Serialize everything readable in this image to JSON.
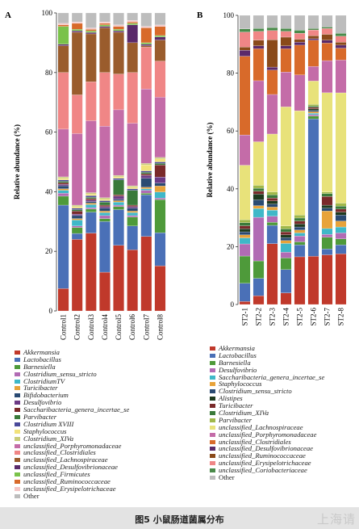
{
  "caption": "图5 小鼠肠道菌属分布",
  "watermark": "上海请",
  "chart_data": [
    {
      "type": "bar",
      "stacked": true,
      "panel_label": "A",
      "ylabel": "Relative abundance (%)",
      "ylim": [
        0,
        100
      ],
      "yticks": [
        0,
        20,
        40,
        60,
        80,
        100
      ],
      "categories": [
        "Control1",
        "Control2",
        "Control3",
        "Control4",
        "Control5",
        "Control6",
        "Control7",
        "Control8"
      ],
      "series": [
        {
          "name": "Akkermansia",
          "color": "#c0392b",
          "values": [
            7.5,
            24,
            26,
            13,
            22,
            20.5,
            25,
            15
          ]
        },
        {
          "name": "Lactobacillus",
          "color": "#4a70b7",
          "values": [
            28,
            2,
            7,
            17,
            12,
            8,
            14,
            11
          ]
        },
        {
          "name": "Barnesiella",
          "color": "#4e9a3a",
          "values": [
            3,
            2,
            1,
            1,
            1,
            3,
            0.5,
            11
          ]
        },
        {
          "name": "Clostridium_sensu_stricto",
          "color": "#b16bb4",
          "values": [
            1,
            0.5,
            0.5,
            1,
            0.5,
            0.5,
            1,
            0.5
          ]
        },
        {
          "name": "ClostridiumTV",
          "color": "#3fb8c8",
          "values": [
            1,
            2,
            1,
            1,
            1,
            1,
            0.5,
            2
          ]
        },
        {
          "name": "Turicibacter",
          "color": "#e8a33a",
          "values": [
            0.5,
            0.5,
            0.5,
            0.5,
            0.5,
            0.5,
            0.5,
            2
          ]
        },
        {
          "name": "Bifidobacterium",
          "color": "#2a4a72",
          "values": [
            1,
            1,
            0.5,
            1,
            0.5,
            1,
            3,
            1
          ]
        },
        {
          "name": "Desulfovibrio",
          "color": "#6b3a85",
          "values": [
            0.5,
            0.5,
            0.5,
            0.5,
            1,
            0.5,
            1,
            2
          ]
        },
        {
          "name": "Saccharibacteria_genera_incertae_se",
          "color": "#7a2a2a",
          "values": [
            0.5,
            1,
            0.5,
            0.5,
            0.5,
            0.5,
            0.5,
            4
          ]
        },
        {
          "name": "Parvibacter",
          "color": "#3a7a3a",
          "values": [
            0.5,
            0.5,
            0.5,
            1,
            5,
            5,
            0.5,
            0.5
          ]
        },
        {
          "name": "Clostridium XVIII",
          "color": "#4a4a9a",
          "values": [
            0.5,
            0.5,
            0.5,
            0.5,
            0.5,
            0.5,
            0.5,
            0.5
          ]
        },
        {
          "name": "Staphylococcus",
          "color": "#f2e27a",
          "values": [
            0.5,
            0.5,
            0.5,
            0.5,
            0.5,
            0.5,
            2,
            1
          ]
        },
        {
          "name": "Clostridium_XIVa",
          "color": "#c9cc7a",
          "values": [
            0.5,
            0.5,
            0.5,
            0.5,
            0.5,
            0.5,
            0.5,
            0.5
          ]
        },
        {
          "name": "unclassified_Porphyromonadaceae",
          "color": "#c46ca8",
          "values": [
            16,
            24,
            24,
            24,
            22,
            21,
            25,
            20
          ]
        },
        {
          "name": "unclassified_Clostridiales",
          "color": "#f08686",
          "values": [
            19,
            13,
            13,
            18,
            12,
            17,
            14,
            12
          ]
        },
        {
          "name": "unclassified_Lachnospiraceae",
          "color": "#9a5c2c",
          "values": [
            9,
            21,
            16,
            15,
            14,
            10,
            0.5,
            7
          ]
        },
        {
          "name": "unclassified_Desulfovibrionaceae",
          "color": "#5a2a6a",
          "values": [
            0.5,
            0.5,
            0.5,
            0.5,
            0.5,
            6,
            0.5,
            1
          ]
        },
        {
          "name": "unclassified_Firmicutes",
          "color": "#7ac24a",
          "values": [
            6,
            0.5,
            0.5,
            0.5,
            0.5,
            0.5,
            0.5,
            0.5
          ]
        },
        {
          "name": "unclassified_Ruminococcaceae",
          "color": "#d86a2a",
          "values": [
            0.5,
            2,
            0.5,
            0.5,
            1,
            0.5,
            5,
            3
          ]
        },
        {
          "name": "unclassified_Erysipelotrichaceae",
          "color": "#f4c6c6",
          "values": [
            0.5,
            0.5,
            0.5,
            0.5,
            0.5,
            0.5,
            0.5,
            0.5
          ]
        },
        {
          "name": "Other",
          "color": "#bdbdbd",
          "values": [
            3.5,
            3,
            5,
            3,
            4,
            2.5,
            4.5,
            4
          ]
        }
      ]
    },
    {
      "type": "bar",
      "stacked": true,
      "panel_label": "B",
      "ylabel": "Relative abundance (%)",
      "ylim": [
        0,
        100
      ],
      "yticks": [
        0,
        20,
        40,
        60,
        80,
        100
      ],
      "categories": [
        "ST2-1",
        "ST2-2",
        "ST2-3",
        "ST2-4",
        "ST2-5",
        "ST2-6",
        "ST2-7",
        "ST2-8"
      ],
      "series": [
        {
          "name": "Akkermansia",
          "color": "#c0392b",
          "values": [
            1,
            3,
            20,
            4,
            16,
            16.5,
            17,
            17
          ]
        },
        {
          "name": "Lactobacillus",
          "color": "#4a70b7",
          "values": [
            6,
            6,
            6,
            8,
            4,
            47,
            2,
            3
          ]
        },
        {
          "name": "Barnesiella",
          "color": "#4e9a3a",
          "values": [
            9,
            6,
            1,
            4,
            1,
            1,
            4,
            2
          ]
        },
        {
          "name": "Desulfovibrio",
          "color": "#b16bb4",
          "values": [
            4,
            15,
            2,
            2,
            2,
            0.5,
            1,
            2
          ]
        },
        {
          "name": "Saccharibacteria_genera_incertae_se",
          "color": "#3fb8c8",
          "values": [
            2,
            3,
            2,
            3,
            1,
            0.5,
            2,
            2
          ]
        },
        {
          "name": "Staphylococcus",
          "color": "#e8a33a",
          "values": [
            1,
            1,
            1,
            1,
            1,
            0.5,
            6,
            2
          ]
        },
        {
          "name": "Clostridium_sensu_stricto",
          "color": "#2a4a72",
          "values": [
            1,
            2,
            1,
            1,
            1,
            0.5,
            1,
            2
          ]
        },
        {
          "name": "Alistipes",
          "color": "#1e3a1e",
          "values": [
            1,
            2,
            1,
            1,
            1,
            0.5,
            1,
            1
          ]
        },
        {
          "name": "Turicibacter",
          "color": "#7a2a2a",
          "values": [
            1,
            1,
            1,
            1,
            1,
            0.5,
            3,
            1
          ]
        },
        {
          "name": "Clostridium_XIVa",
          "color": "#3a7a3a",
          "values": [
            1,
            1,
            1,
            1,
            1,
            0.5,
            1,
            1
          ]
        },
        {
          "name": "Parvibacter",
          "color": "#a0b84a",
          "values": [
            1,
            1,
            1,
            1,
            1,
            0.5,
            0.5,
            1
          ]
        },
        {
          "name": "unclassified_Lachnospiraceae",
          "color": "#e8e27a",
          "values": [
            18,
            15,
            19,
            41,
            35,
            8,
            34,
            37
          ]
        },
        {
          "name": "unclassified_Porphyromonadaceae",
          "color": "#c46ca8",
          "values": [
            10,
            21,
            13,
            12,
            12,
            5,
            11,
            11
          ]
        },
        {
          "name": "unclassified_Clostridiales",
          "color": "#d86a2a",
          "values": [
            26,
            11,
            8,
            8,
            10,
            9,
            6,
            4
          ]
        },
        {
          "name": "unclassified_Desulfovibrionaceae",
          "color": "#5a2a6a",
          "values": [
            2,
            1,
            1,
            1,
            1,
            0.5,
            1,
            1
          ]
        },
        {
          "name": "unclassified_Ruminococcaceae",
          "color": "#8a4a1a",
          "values": [
            1,
            2,
            9,
            3,
            1,
            1,
            2,
            1
          ]
        },
        {
          "name": "unclassified_Erysipelotrichaceae",
          "color": "#f08686",
          "values": [
            5,
            3,
            3,
            2,
            2,
            2,
            2,
            2
          ]
        },
        {
          "name": "unclassified_Coriobacteriaceae",
          "color": "#4a8a4a",
          "values": [
            1,
            1,
            1,
            1,
            1,
            0.5,
            0.5,
            1
          ]
        },
        {
          "name": "Other",
          "color": "#bdbdbd",
          "values": [
            4.5,
            4.5,
            4,
            4.5,
            5,
            4.5,
            4,
            6
          ]
        }
      ]
    }
  ]
}
